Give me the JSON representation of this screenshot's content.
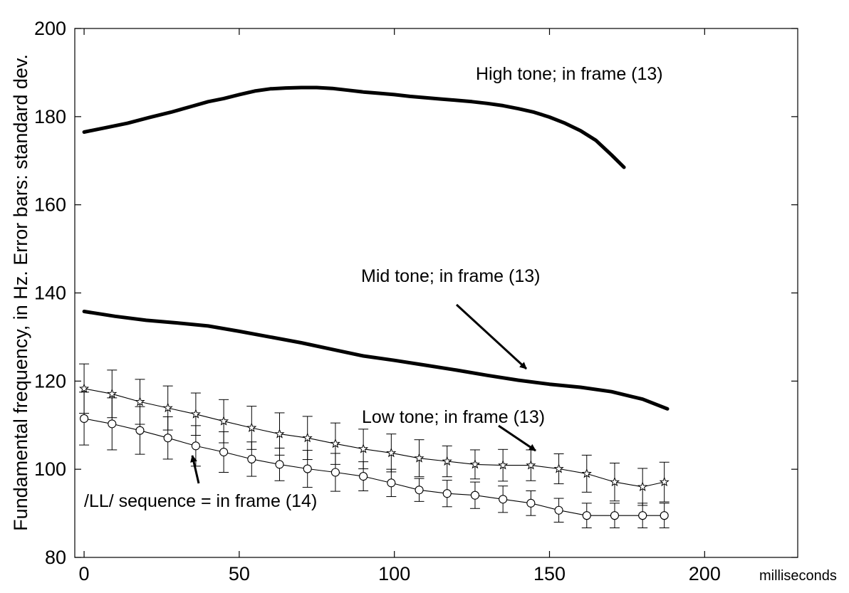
{
  "chart_data": {
    "type": "line",
    "ylabel": "Fundamental frequency, in Hz.  Error bars: standard dev.",
    "x_unit_label": "milliseconds",
    "xlim": [
      -3,
      230
    ],
    "ylim": [
      80,
      200
    ],
    "xticks": [
      0,
      50,
      100,
      150,
      200
    ],
    "yticks": [
      80,
      100,
      120,
      140,
      160,
      180,
      200
    ],
    "grid": false,
    "series": [
      {
        "name": "High tone; in frame (13)",
        "style": "thick",
        "x": [
          0,
          7,
          14,
          21,
          28,
          35,
          40,
          45,
          50,
          55,
          60,
          65,
          70,
          75,
          80,
          85,
          90,
          95,
          100,
          105,
          110,
          115,
          120,
          125,
          130,
          135,
          140,
          145,
          150,
          155,
          160,
          165,
          170,
          174
        ],
        "y": [
          176.5,
          177.5,
          178.5,
          179.8,
          181,
          182.4,
          183.4,
          184.1,
          185,
          185.8,
          186.3,
          186.5,
          186.6,
          186.6,
          186.4,
          186.0,
          185.6,
          185.3,
          185.0,
          184.6,
          184.3,
          184.0,
          183.7,
          183.4,
          183.0,
          182.5,
          181.8,
          181.0,
          179.9,
          178.5,
          176.8,
          174.6,
          171.3,
          168.5
        ]
      },
      {
        "name": "Mid tone; in frame (13)",
        "style": "thick",
        "x": [
          0,
          10,
          20,
          30,
          40,
          50,
          60,
          70,
          80,
          90,
          100,
          110,
          120,
          130,
          140,
          150,
          160,
          170,
          180,
          188
        ],
        "y": [
          135.8,
          134.7,
          133.8,
          133.2,
          132.5,
          131.3,
          130.0,
          128.7,
          127.2,
          125.7,
          124.7,
          123.6,
          122.5,
          121.3,
          120.2,
          119.3,
          118.6,
          117.6,
          115.9,
          113.7
        ]
      },
      {
        "name": "Low tone; in frame (13)",
        "style": "stars",
        "x": [
          0,
          9,
          18,
          27,
          36,
          45,
          54,
          63,
          72,
          81,
          90,
          99,
          108,
          117,
          126,
          135,
          144,
          153,
          162,
          171,
          180,
          187
        ],
        "y": [
          118.3,
          117.1,
          115.3,
          113.9,
          112.5,
          110.9,
          109.4,
          108.0,
          107.1,
          105.8,
          104.6,
          103.7,
          102.5,
          101.8,
          101.1,
          100.9,
          100.9,
          100.1,
          99.0,
          97.1,
          96.0,
          97.1
        ],
        "err": [
          5.6,
          5.4,
          5.1,
          5.0,
          4.8,
          4.9,
          4.9,
          4.8,
          4.9,
          4.7,
          4.5,
          4.3,
          4.2,
          3.5,
          3.3,
          3.6,
          3.5,
          3.4,
          4.2,
          4.3,
          4.2,
          4.5
        ]
      },
      {
        "name": "/LL/ sequence = in frame (14)",
        "style": "circles",
        "x": [
          0,
          9,
          18,
          27,
          36,
          45,
          54,
          63,
          72,
          81,
          90,
          99,
          108,
          117,
          126,
          135,
          144,
          153,
          162,
          171,
          180,
          187
        ],
        "y": [
          111.5,
          110.3,
          108.8,
          107.1,
          105.3,
          103.9,
          102.3,
          101.1,
          100.1,
          99.3,
          98.4,
          96.9,
          95.3,
          94.5,
          94.1,
          93.2,
          92.3,
          90.7,
          89.5,
          89.5,
          89.5,
          89.5
        ],
        "err": [
          6.0,
          5.9,
          5.4,
          4.8,
          4.6,
          4.6,
          3.9,
          3.7,
          4.2,
          4.3,
          3.3,
          3.1,
          2.6,
          3.0,
          3.0,
          3.0,
          2.8,
          2.7,
          2.8,
          2.8,
          2.8,
          2.8
        ]
      }
    ],
    "annotations": [
      {
        "text": "High tone; in frame (13)"
      },
      {
        "text": "Mid tone; in frame (13)"
      },
      {
        "text": "Low tone; in frame (13)"
      },
      {
        "text": "/LL/ sequence = in frame (14)"
      }
    ]
  }
}
